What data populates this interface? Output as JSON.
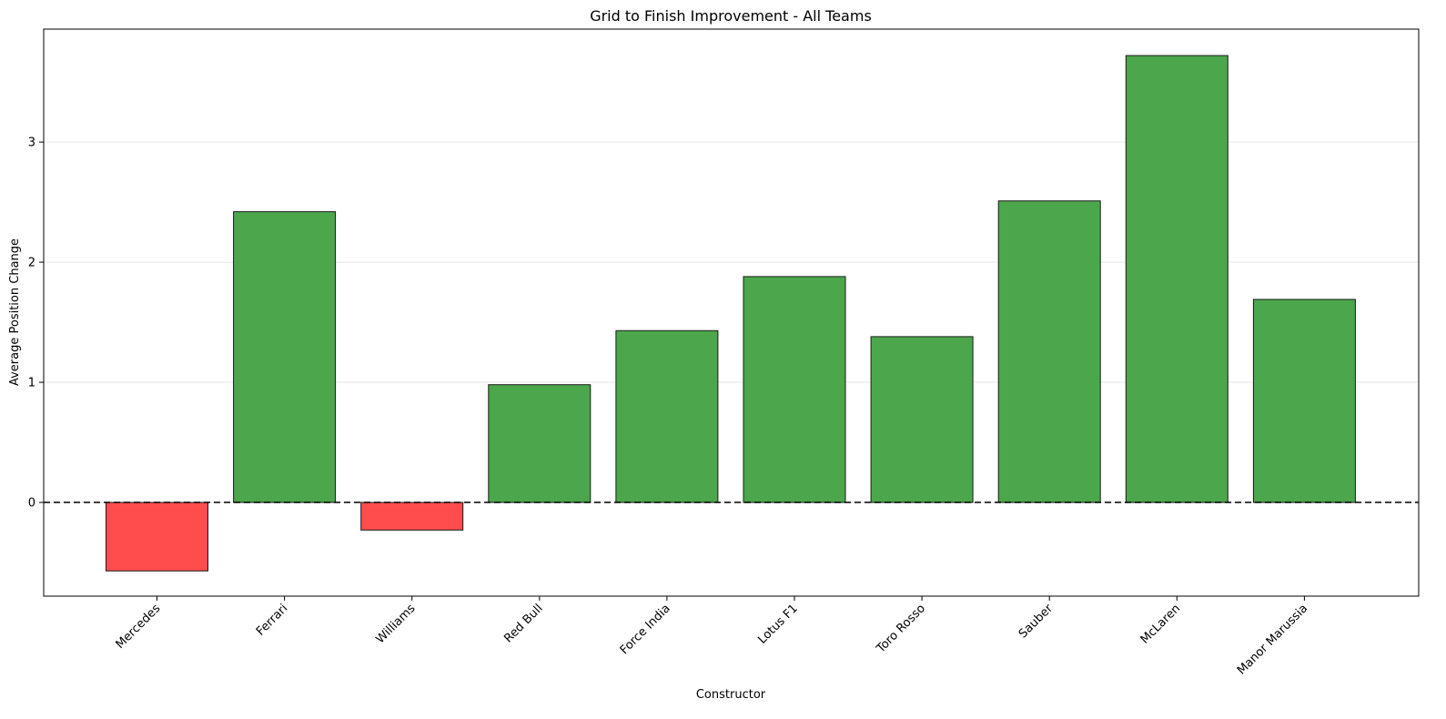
{
  "chart_data": {
    "type": "bar",
    "title": "Grid to Finish Improvement - All Teams",
    "xlabel": "Constructor",
    "ylabel": "Average Position Change",
    "categories": [
      "Mercedes",
      "Ferrari",
      "Williams",
      "Red Bull",
      "Force India",
      "Lotus F1",
      "Toro Rosso",
      "Sauber",
      "McLaren",
      "Manor Marussia"
    ],
    "values": [
      -0.57,
      2.42,
      -0.23,
      0.98,
      1.43,
      1.88,
      1.38,
      2.51,
      3.72,
      1.69
    ],
    "yticks": [
      0,
      1,
      2,
      3
    ],
    "ylim": [
      -0.78,
      3.94
    ],
    "grid": "y",
    "reference_line": 0,
    "colors": {
      "positive": "#4ca64c",
      "negative": "#ff4d4d",
      "edge": "#1a1a1a"
    }
  }
}
